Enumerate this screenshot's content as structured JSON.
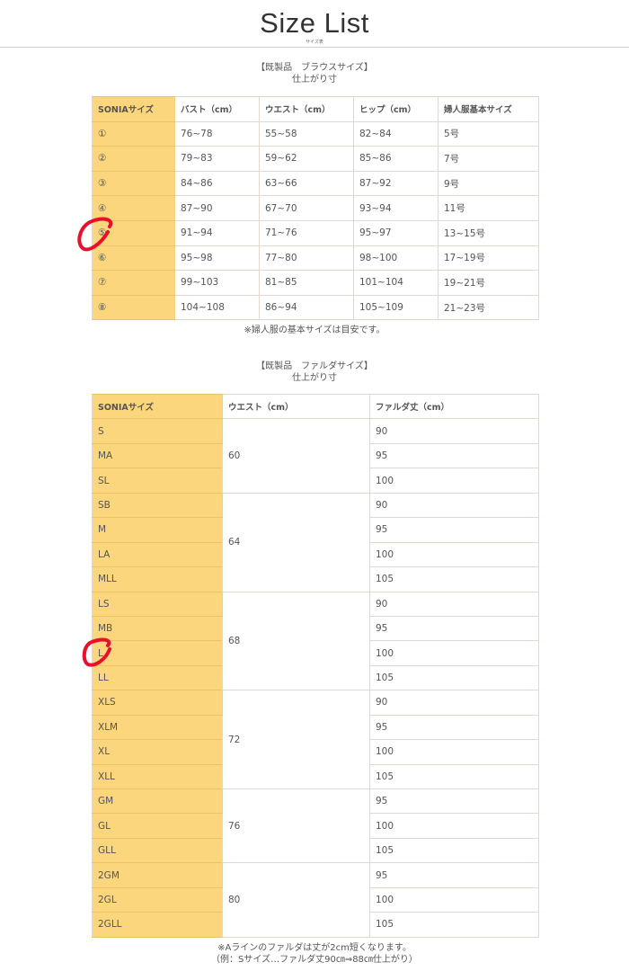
{
  "header": {
    "title": "Size List",
    "subtitle": "サイズ表"
  },
  "blouse": {
    "heading": "【既製品　ブラウスサイズ】",
    "subheading": "仕上がり寸",
    "columns": [
      "SONIAサイズ",
      "バスト（cm）",
      "ウエスト（cm）",
      "ヒップ（cm）",
      "婦人服基本サイズ"
    ],
    "rows": [
      [
        "①",
        "76~78",
        "55~58",
        "82~84",
        "5号"
      ],
      [
        "②",
        "79~83",
        "59~62",
        "85~86",
        "7号"
      ],
      [
        "③",
        "84~86",
        "63~66",
        "87~92",
        "9号"
      ],
      [
        "④",
        "87~90",
        "67~70",
        "93~94",
        "11号"
      ],
      [
        "⑤",
        "91~94",
        "71~76",
        "95~97",
        "13~15号"
      ],
      [
        "⑥",
        "95~98",
        "77~80",
        "98~100",
        "17~19号"
      ],
      [
        "⑦",
        "99~103",
        "81~85",
        "101~104",
        "19~21号"
      ],
      [
        "⑧",
        "104~108",
        "86~94",
        "105~109",
        "21~23号"
      ]
    ],
    "note": "※婦人服の基本サイズは目安です。"
  },
  "skirt": {
    "heading": "【既製品　ファルダサイズ】",
    "subheading": "仕上がり寸",
    "columns": [
      "SONIAサイズ",
      "ウエスト（cm）",
      "ファルダ丈（cm）"
    ],
    "groups": [
      {
        "waist": "60",
        "rows": [
          [
            "S",
            "90"
          ],
          [
            "MA",
            "95"
          ],
          [
            "SL",
            "100"
          ]
        ]
      },
      {
        "waist": "64",
        "rows": [
          [
            "SB",
            "90"
          ],
          [
            "M",
            "95"
          ],
          [
            "LA",
            "100"
          ],
          [
            "MLL",
            "105"
          ]
        ]
      },
      {
        "waist": "68",
        "rows": [
          [
            "LS",
            "90"
          ],
          [
            "MB",
            "95"
          ],
          [
            "L",
            "100"
          ],
          [
            "LL",
            "105"
          ]
        ]
      },
      {
        "waist": "72",
        "rows": [
          [
            "XLS",
            "90"
          ],
          [
            "XLM",
            "95"
          ],
          [
            "XL",
            "100"
          ],
          [
            "XLL",
            "105"
          ]
        ]
      },
      {
        "waist": "76",
        "rows": [
          [
            "GM",
            "95"
          ],
          [
            "GL",
            "100"
          ],
          [
            "GLL",
            "105"
          ]
        ]
      },
      {
        "waist": "80",
        "rows": [
          [
            "2GM",
            "95"
          ],
          [
            "2GL",
            "100"
          ],
          [
            "2GLL",
            "105"
          ]
        ]
      }
    ],
    "note_line1": "※Aラインのファルダは丈が2cm短くなります。",
    "note_line2": "（例：Sサイズ…ファルダ丈90㎝⇒88㎝仕上がり）"
  },
  "colors": {
    "size_column": "#fcd67c",
    "border": "#e3d6cc",
    "annotation": "#e8102a"
  },
  "annotations": [
    "red-circle-size-5",
    "red-circle-size-L"
  ]
}
